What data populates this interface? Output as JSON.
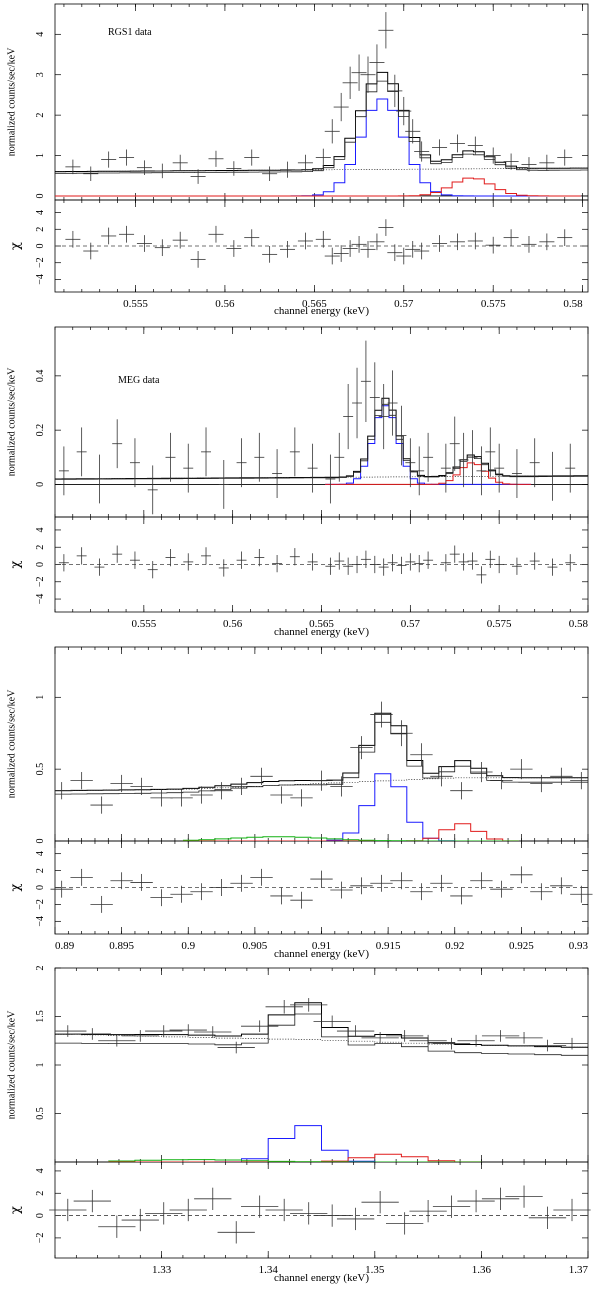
{
  "chart_data": [
    {
      "type": "step-spectrum",
      "annotation": "RGS1 data",
      "ylabel": "normalized counts/sec/keV",
      "xlabel": "channel energy (keV)",
      "residual_label": "χ",
      "xlim": [
        0.5505,
        0.5803
      ],
      "ylim": [
        -0.1,
        4.75
      ],
      "xticks": [
        0.555,
        0.56,
        0.565,
        0.57,
        0.575,
        0.58
      ],
      "xtick_labels": [
        "0.555",
        "0.56",
        "0.565",
        "0.57",
        "0.575",
        "0.58"
      ],
      "yticks": [
        0,
        1,
        2,
        3,
        4
      ],
      "ytick_labels": [
        "0",
        "1",
        "2",
        "3",
        "4"
      ],
      "res_ylim": [
        -5.5,
        5.5
      ],
      "res_yticks": [
        -4,
        -2,
        0,
        2,
        4
      ],
      "res_ytick_labels": [
        "−4",
        "−2",
        "0",
        "2",
        "4"
      ],
      "bin_width": 0.0006,
      "continuum": [
        0.55,
        0.56,
        0.57,
        0.58
      ],
      "continuum_values": [
        0.6,
        0.63,
        0.66,
        0.69
      ],
      "lines": [
        {
          "name": "blue",
          "color": "#1a1aff",
          "center": 0.5688,
          "sigma": 0.0012,
          "amp": 2.4
        },
        {
          "name": "red",
          "color": "#e01a1a",
          "center": 0.5738,
          "sigma": 0.0011,
          "amp": 0.45
        }
      ],
      "line_support": [
        0.551,
        0.5795
      ],
      "data_x": [
        0.5515,
        0.5525,
        0.5535,
        0.5545,
        0.5555,
        0.5565,
        0.5575,
        0.5585,
        0.5595,
        0.5605,
        0.5615,
        0.5625,
        0.5635,
        0.5645,
        0.5655,
        0.566,
        0.5665,
        0.567,
        0.5675,
        0.568,
        0.5685,
        0.569,
        0.5695,
        0.57,
        0.5705,
        0.571,
        0.572,
        0.573,
        0.574,
        0.575,
        0.576,
        0.577,
        0.578,
        0.579
      ],
      "data_y": [
        0.72,
        0.55,
        0.9,
        0.95,
        0.7,
        0.62,
        0.82,
        0.48,
        0.92,
        0.68,
        0.95,
        0.55,
        0.65,
        0.82,
        0.95,
        1.6,
        2.2,
        2.8,
        3.05,
        3.0,
        3.3,
        4.1,
        2.6,
        2.1,
        1.6,
        1.1,
        1.2,
        1.3,
        1.25,
        1.0,
        0.85,
        0.78,
        0.82,
        0.95
      ],
      "data_err": [
        0.18,
        0.18,
        0.2,
        0.2,
        0.18,
        0.18,
        0.2,
        0.18,
        0.2,
        0.18,
        0.2,
        0.18,
        0.2,
        0.2,
        0.22,
        0.3,
        0.35,
        0.4,
        0.45,
        0.45,
        0.45,
        0.45,
        0.4,
        0.35,
        0.3,
        0.25,
        0.2,
        0.22,
        0.22,
        0.2,
        0.2,
        0.18,
        0.2,
        0.2
      ],
      "res_y": [
        0.8,
        -0.6,
        1.2,
        1.4,
        0.3,
        -0.2,
        0.7,
        -1.6,
        1.4,
        -0.3,
        1.0,
        -1.0,
        -0.4,
        0.6,
        0.8,
        -1.2,
        -0.9,
        -0.3,
        0.2,
        -0.4,
        0.5,
        2.2,
        -0.8,
        -1.2,
        -0.4,
        -0.6,
        0.3,
        0.5,
        0.6,
        0.1,
        1.0,
        0.2,
        0.5,
        1.0
      ]
    },
    {
      "type": "step-spectrum",
      "annotation": "MEG data",
      "ylabel": "normalized counts/sec/keV",
      "xlabel": "channel energy (keV)",
      "residual_label": "χ",
      "xlim": [
        0.55,
        0.58
      ],
      "ylim": [
        -0.12,
        0.58
      ],
      "xticks": [
        0.555,
        0.56,
        0.565,
        0.57,
        0.575,
        0.58
      ],
      "xtick_labels": [
        "0.555",
        "0.56",
        "0.565",
        "0.57",
        "0.575",
        "0.58"
      ],
      "yticks": [
        0,
        0.2,
        0.4
      ],
      "ytick_labels": [
        "0",
        "0.2",
        "0.4"
      ],
      "res_ylim": [
        -5.5,
        5.5
      ],
      "res_yticks": [
        -4,
        -2,
        0,
        2,
        4
      ],
      "res_ytick_labels": [
        "−4",
        "−2",
        "0",
        "2",
        "4"
      ],
      "bin_width": 0.0004,
      "continuum": [
        0.55,
        0.56,
        0.57,
        0.58
      ],
      "continuum_values": [
        0.02,
        0.024,
        0.028,
        0.032
      ],
      "lines": [
        {
          "name": "blue",
          "color": "#1a1aff",
          "center": 0.5686,
          "sigma": 0.0007,
          "amp": 0.29
        },
        {
          "name": "red",
          "color": "#e01a1a",
          "center": 0.5735,
          "sigma": 0.0007,
          "amp": 0.08
        }
      ],
      "line_support": [
        0.5655,
        0.5765
      ],
      "data_x": [
        0.5505,
        0.5515,
        0.5525,
        0.5535,
        0.5545,
        0.5555,
        0.5565,
        0.5575,
        0.5585,
        0.5595,
        0.5605,
        0.5615,
        0.5625,
        0.5635,
        0.5645,
        0.5655,
        0.566,
        0.5665,
        0.567,
        0.5675,
        0.568,
        0.5685,
        0.569,
        0.5695,
        0.57,
        0.5705,
        0.571,
        0.572,
        0.5725,
        0.573,
        0.5735,
        0.574,
        0.5745,
        0.575,
        0.576,
        0.577,
        0.578,
        0.579
      ],
      "data_y": [
        0.05,
        0.12,
        0.02,
        0.15,
        0.08,
        -0.02,
        0.1,
        0.06,
        0.12,
        0.0,
        0.08,
        0.1,
        0.04,
        0.12,
        0.06,
        0.02,
        0.1,
        0.25,
        0.3,
        0.38,
        0.32,
        0.25,
        0.3,
        0.18,
        0.08,
        0.05,
        0.1,
        0.06,
        0.15,
        0.09,
        0.1,
        0.05,
        0.12,
        0.06,
        0.04,
        0.08,
        0.03,
        0.06
      ],
      "data_err": [
        0.09,
        0.09,
        0.09,
        0.09,
        0.09,
        0.09,
        0.09,
        0.09,
        0.09,
        0.09,
        0.09,
        0.09,
        0.09,
        0.09,
        0.09,
        0.09,
        0.09,
        0.12,
        0.13,
        0.15,
        0.13,
        0.12,
        0.12,
        0.11,
        0.09,
        0.09,
        0.09,
        0.09,
        0.1,
        0.1,
        0.1,
        0.09,
        0.09,
        0.09,
        0.09,
        0.09,
        0.09,
        0.09
      ],
      "res_y": [
        0.2,
        1.0,
        -0.3,
        1.2,
        0.5,
        -0.6,
        0.8,
        0.3,
        1.0,
        -0.4,
        0.5,
        0.8,
        0.1,
        0.9,
        0.3,
        -0.2,
        0.4,
        -0.2,
        0.0,
        0.6,
        0.0,
        -0.3,
        0.2,
        -0.1,
        0.3,
        0.1,
        0.5,
        0.2,
        1.2,
        0.3,
        0.4,
        -1.2,
        0.6,
        0.0,
        -0.2,
        0.4,
        -0.3,
        0.2
      ]
    },
    {
      "type": "step-spectrum",
      "annotation": "",
      "ylabel": "normalized counts/sec/keV",
      "xlabel": "channel energy (keV)",
      "residual_label": "χ",
      "xlim": [
        0.89,
        0.93
      ],
      "ylim": [
        0,
        1.35
      ],
      "xticks": [
        0.89,
        0.895,
        0.9,
        0.905,
        0.91,
        0.915,
        0.92,
        0.925,
        0.93
      ],
      "xtick_labels": [
        "0.89",
        "0.895",
        "0.9",
        "0.905",
        "0.91",
        "0.915",
        "0.92",
        "0.925",
        "0.93"
      ],
      "yticks": [
        0,
        0.5,
        1
      ],
      "ytick_labels": [
        "0",
        "0.5",
        "1"
      ],
      "res_ylim": [
        -5.5,
        5.5
      ],
      "res_yticks": [
        -4,
        -2,
        0,
        2,
        4
      ],
      "res_ytick_labels": [
        "−4",
        "−2",
        "0",
        "2",
        "4"
      ],
      "bin_width": 0.0012,
      "continuum": [
        0.89,
        0.9,
        0.91,
        0.92,
        0.93
      ],
      "continuum_values": [
        0.35,
        0.36,
        0.4,
        0.44,
        0.44
      ],
      "lines": [
        {
          "name": "blue",
          "color": "#1a1aff",
          "center": 0.9149,
          "sigma": 0.0013,
          "amp": 0.48
        },
        {
          "name": "red",
          "color": "#e01a1a",
          "center": 0.9205,
          "sigma": 0.0012,
          "amp": 0.12
        },
        {
          "name": "green",
          "color": "#10b010",
          "center": 0.9068,
          "sigma": 0.0035,
          "amp": 0.03
        }
      ],
      "line_support": [
        0.9005,
        0.9245
      ],
      "data_x": [
        0.8905,
        0.892,
        0.8935,
        0.895,
        0.8965,
        0.898,
        0.8995,
        0.901,
        0.9025,
        0.904,
        0.9055,
        0.907,
        0.9085,
        0.91,
        0.9115,
        0.913,
        0.9145,
        0.916,
        0.9175,
        0.919,
        0.9205,
        0.922,
        0.9235,
        0.925,
        0.9265,
        0.928,
        0.9295
      ],
      "data_y": [
        0.35,
        0.42,
        0.25,
        0.4,
        0.38,
        0.3,
        0.3,
        0.32,
        0.35,
        0.38,
        0.45,
        0.32,
        0.3,
        0.42,
        0.38,
        0.65,
        0.88,
        0.75,
        0.6,
        0.45,
        0.35,
        0.48,
        0.42,
        0.5,
        0.4,
        0.45,
        0.42
      ],
      "data_err": [
        0.06,
        0.06,
        0.06,
        0.06,
        0.06,
        0.06,
        0.06,
        0.06,
        0.06,
        0.06,
        0.06,
        0.06,
        0.06,
        0.07,
        0.07,
        0.08,
        0.09,
        0.09,
        0.08,
        0.07,
        0.06,
        0.07,
        0.06,
        0.07,
        0.06,
        0.06,
        0.06
      ],
      "res_y": [
        -0.2,
        1.2,
        -2.0,
        0.8,
        0.6,
        -1.2,
        -0.8,
        -0.5,
        0.0,
        0.5,
        1.2,
        -1.0,
        -1.5,
        1.0,
        -0.3,
        0.2,
        0.5,
        0.8,
        -0.5,
        0.5,
        -1.0,
        0.8,
        -0.2,
        1.5,
        -0.5,
        0.2,
        -0.8
      ]
    },
    {
      "type": "step-spectrum",
      "annotation": "",
      "ylabel": "normalized counts/sec/keV",
      "xlabel": "channel energy (keV)",
      "residual_label": "χ",
      "xlim": [
        1.32,
        1.37
      ],
      "ylim": [
        0,
        2
      ],
      "xticks": [
        1.33,
        1.34,
        1.35,
        1.36,
        1.37
      ],
      "xtick_labels": [
        "1.33",
        "1.34",
        "1.35",
        "1.36",
        "1.37"
      ],
      "yticks": [
        0.5,
        1,
        1.5,
        2
      ],
      "ytick_labels": [
        "0.5",
        "1",
        "1.5",
        "2"
      ],
      "res_ylim": [
        -3.8,
        4.8
      ],
      "res_yticks": [
        -2,
        0,
        2,
        4
      ],
      "res_ytick_labels": [
        "−2",
        "0",
        "2",
        "4"
      ],
      "bin_width": 0.0025,
      "continuum": [
        1.32,
        1.335,
        1.345,
        1.355,
        1.37
      ],
      "continuum_values": [
        1.32,
        1.28,
        1.26,
        1.22,
        1.18
      ],
      "lines": [
        {
          "name": "blue",
          "color": "#1a1aff",
          "center": 1.3432,
          "sigma": 0.002,
          "amp": 0.39
        },
        {
          "name": "red",
          "color": "#e01a1a",
          "center": 1.3515,
          "sigma": 0.0025,
          "amp": 0.08
        },
        {
          "name": "green",
          "color": "#10b010",
          "center": 1.333,
          "sigma": 0.005,
          "amp": 0.025
        }
      ],
      "line_support": [
        1.326,
        1.359
      ],
      "data_x": [
        1.3212,
        1.3235,
        1.3258,
        1.328,
        1.3302,
        1.3325,
        1.3348,
        1.337,
        1.3392,
        1.3415,
        1.3438,
        1.346,
        1.3482,
        1.3505,
        1.3528,
        1.355,
        1.3572,
        1.3595,
        1.3618,
        1.364,
        1.3662,
        1.3685
      ],
      "data_y": [
        1.35,
        1.32,
        1.25,
        1.3,
        1.35,
        1.36,
        1.34,
        1.18,
        1.4,
        1.6,
        1.62,
        1.45,
        1.35,
        1.28,
        1.3,
        1.25,
        1.22,
        1.25,
        1.3,
        1.28,
        1.2,
        1.22
      ],
      "data_err": [
        0.06,
        0.06,
        0.06,
        0.06,
        0.06,
        0.06,
        0.06,
        0.06,
        0.06,
        0.07,
        0.07,
        0.06,
        0.06,
        0.06,
        0.06,
        0.06,
        0.06,
        0.06,
        0.06,
        0.06,
        0.06,
        0.06
      ],
      "res_y": [
        0.5,
        1.3,
        -1.0,
        -0.4,
        0.2,
        0.5,
        1.5,
        -1.5,
        0.8,
        0.5,
        0.2,
        0.0,
        -0.3,
        1.2,
        -0.7,
        0.4,
        0.8,
        1.3,
        1.5,
        1.7,
        -0.2,
        0.5
      ]
    }
  ]
}
